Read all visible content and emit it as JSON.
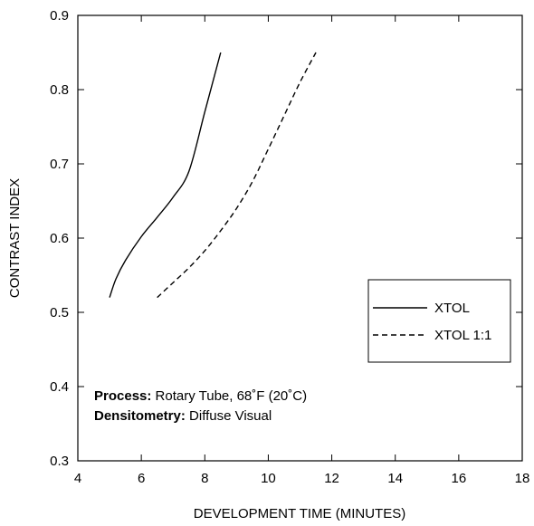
{
  "chart_data": {
    "type": "line",
    "xlabel": "DEVELOPMENT TIME (MINUTES)",
    "ylabel": "CONTRAST INDEX",
    "xlim": [
      4,
      18
    ],
    "ylim": [
      0.3,
      0.9
    ],
    "x_ticks": [
      "4",
      "6",
      "8",
      "10",
      "12",
      "14",
      "16",
      "18"
    ],
    "y_ticks": [
      "0.3",
      "0.4",
      "0.5",
      "0.6",
      "0.7",
      "0.8",
      "0.9"
    ],
    "grid": false,
    "legend_position": "right-middle",
    "series": [
      {
        "name": "XTOL",
        "style": "solid",
        "color": "#000000",
        "points": [
          [
            5.0,
            0.52
          ],
          [
            5.2,
            0.545
          ],
          [
            5.5,
            0.57
          ],
          [
            6.0,
            0.602
          ],
          [
            6.5,
            0.628
          ],
          [
            7.0,
            0.655
          ],
          [
            7.5,
            0.69
          ],
          [
            8.0,
            0.77
          ],
          [
            8.5,
            0.85
          ]
        ]
      },
      {
        "name": "XTOL 1:1",
        "style": "dashed",
        "color": "#000000",
        "points": [
          [
            6.5,
            0.52
          ],
          [
            7.0,
            0.54
          ],
          [
            7.5,
            0.56
          ],
          [
            8.0,
            0.583
          ],
          [
            8.5,
            0.61
          ],
          [
            9.0,
            0.64
          ],
          [
            9.5,
            0.676
          ],
          [
            10.0,
            0.72
          ],
          [
            10.5,
            0.765
          ],
          [
            11.0,
            0.81
          ],
          [
            11.5,
            0.85
          ]
        ]
      }
    ],
    "annotation": {
      "line1_bold": "Process:",
      "line1_text": " Rotary Tube, 68˚F (20˚C)",
      "line2_bold": "Densitometry:",
      "line2_text": " Diffuse Visual"
    }
  }
}
